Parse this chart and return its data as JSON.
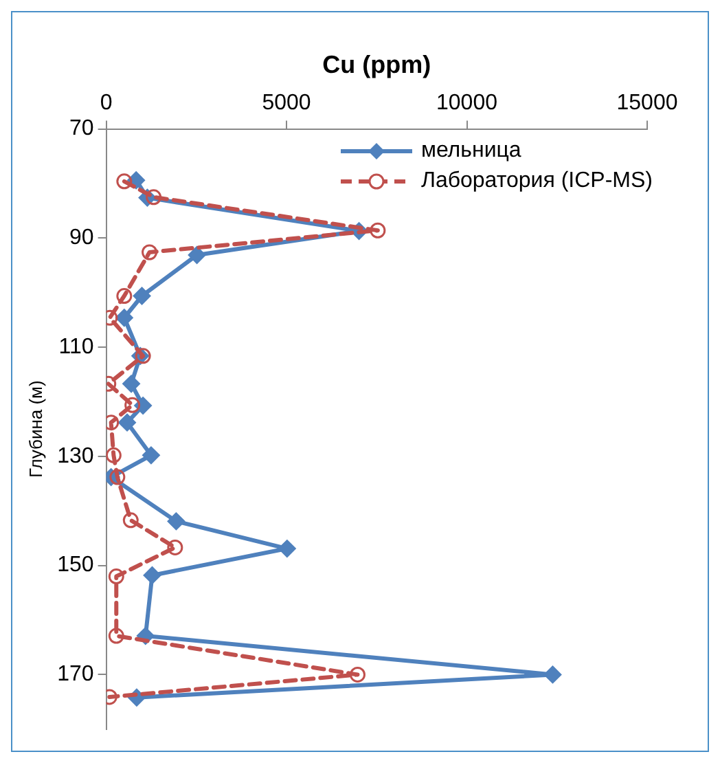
{
  "chart_data": {
    "type": "line",
    "xlabel": "Cu (ppm)",
    "ylabel": "Глубина (м)",
    "xlim": [
      0,
      15000
    ],
    "xticks": [
      0,
      5000,
      10000,
      15000
    ],
    "ylim": [
      180,
      70
    ],
    "yticks": [
      70,
      90,
      110,
      130,
      150,
      170
    ],
    "grid": false,
    "legend": "top right",
    "series": [
      {
        "name": "мельница",
        "color": "#4f81bd",
        "marker": "diamond",
        "line_style": "solid",
        "x": [
          830,
          1140,
          7010,
          2515,
          990,
          500,
          945,
          695,
          1020,
          580,
          1245,
          135,
          1940,
          5015,
          1275,
          1090,
          12380,
          845
        ],
        "values": [
          79.4,
          82.6,
          88.7,
          93.1,
          100.6,
          104.6,
          111.6,
          116.7,
          120.7,
          123.8,
          129.8,
          133.8,
          141.9,
          146.9,
          151.8,
          162.9,
          170,
          174.2
        ]
      },
      {
        "name": "Лаборатория (ICP-MS)",
        "color": "#c0504d",
        "marker": "circle",
        "line_style": "dashed",
        "x": [
          500,
          1315,
          7530,
          1200,
          500,
          100,
          1020,
          60,
          725,
          135,
          205,
          310,
          680,
          1910,
          280,
          280,
          6970,
          90
        ],
        "values": [
          79.6,
          82.5,
          88.6,
          92.6,
          100.6,
          104.6,
          111.6,
          116.7,
          120.6,
          123.8,
          129.8,
          133.8,
          141.7,
          146.7,
          152,
          162.9,
          170,
          174.1
        ]
      }
    ]
  }
}
